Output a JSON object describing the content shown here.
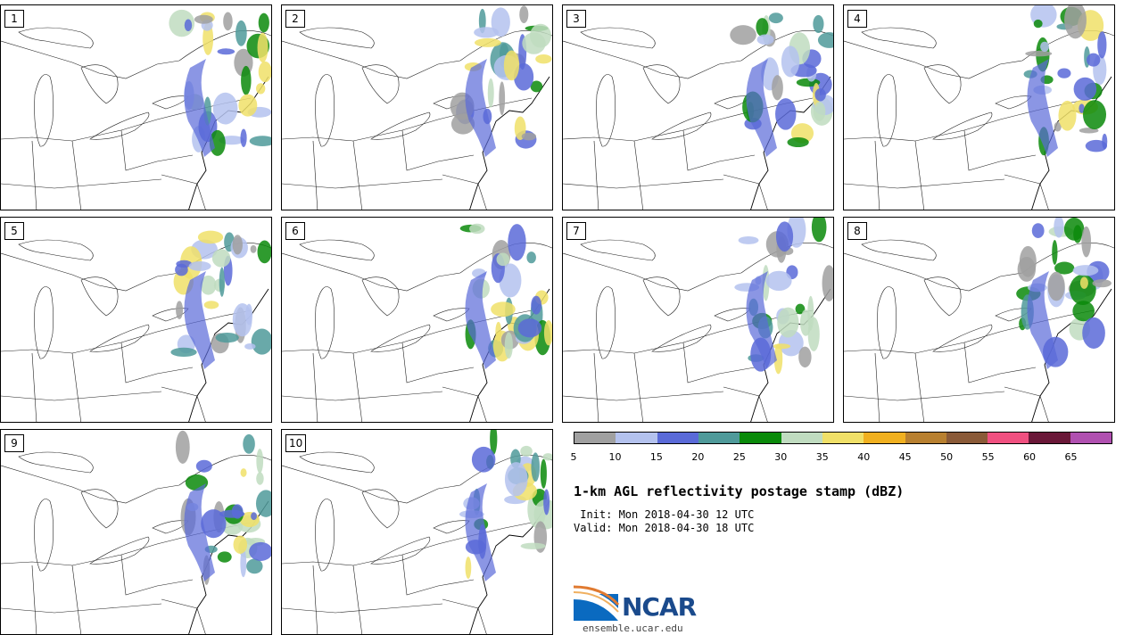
{
  "panels": [
    {
      "label": "1"
    },
    {
      "label": "2"
    },
    {
      "label": "3"
    },
    {
      "label": "4"
    },
    {
      "label": "5"
    },
    {
      "label": "6"
    },
    {
      "label": "7"
    },
    {
      "label": "8"
    },
    {
      "label": "9"
    },
    {
      "label": "10"
    }
  ],
  "colorbar": {
    "ticks": [
      "5",
      "10",
      "15",
      "20",
      "25",
      "30",
      "35",
      "40",
      "45",
      "50",
      "55",
      "60",
      "65"
    ],
    "colors": [
      "#a0a0a0",
      "#b4c2ee",
      "#5a6ad8",
      "#4f9a9a",
      "#0a8a0a",
      "#c0dcc0",
      "#f0e068",
      "#f0b020",
      "#b88030",
      "#8a5a38",
      "#f05080",
      "#6a1838",
      "#b050b0"
    ]
  },
  "title": "1-km AGL reflectivity postage stamp (dBZ)",
  "init": " Init: Mon 2018-04-30 12 UTC",
  "valid": "Valid: Mon 2018-04-30 18 UTC",
  "logo": {
    "text": "NCAR",
    "site": "ensemble.ucar.edu"
  }
}
